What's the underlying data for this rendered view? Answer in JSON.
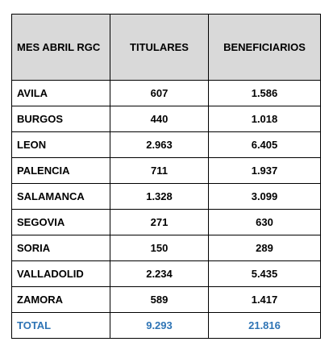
{
  "table": {
    "header": [
      "MES ABRIL RGC",
      "TITULARES",
      "BENEFICIARIOS"
    ],
    "rows": [
      [
        "AVILA",
        "607",
        "1.586"
      ],
      [
        "BURGOS",
        "440",
        "1.018"
      ],
      [
        "LEON",
        "2.963",
        "6.405"
      ],
      [
        "PALENCIA",
        "711",
        "1.937"
      ],
      [
        "SALAMANCA",
        "1.328",
        "3.099"
      ],
      [
        "SEGOVIA",
        "271",
        "630"
      ],
      [
        "SORIA",
        "150",
        "289"
      ],
      [
        "VALLADOLID",
        "2.234",
        "5.435"
      ],
      [
        "ZAMORA",
        "589",
        "1.417"
      ]
    ],
    "total": [
      "TOTAL",
      "9.293",
      "21.816"
    ]
  }
}
